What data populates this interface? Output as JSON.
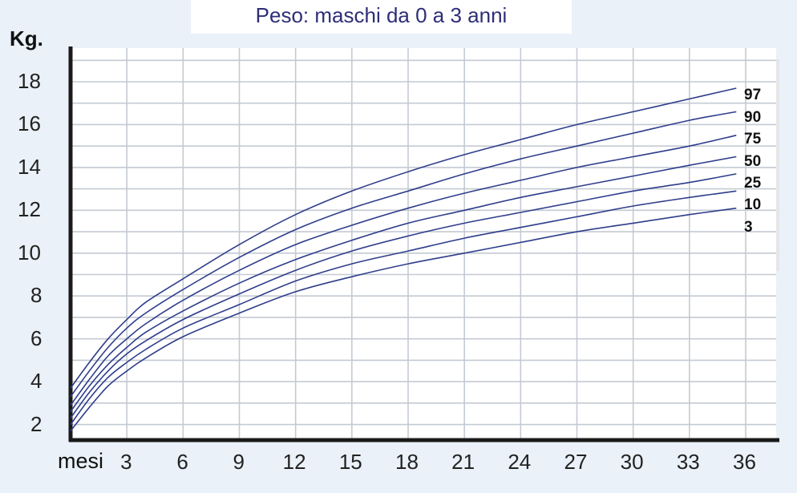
{
  "chart_data": {
    "type": "line",
    "title": "Peso: maschi da 0 a 3 anni",
    "ylabel": "Kg.",
    "xlabel": "mesi",
    "xlim": [
      0,
      36
    ],
    "ylim": [
      0,
      19
    ],
    "grid": true,
    "legend": "right",
    "x_ticks": [
      3,
      6,
      9,
      12,
      15,
      18,
      21,
      24,
      27,
      30,
      33,
      36
    ],
    "y_ticks": [
      2,
      4,
      6,
      8,
      10,
      12,
      14,
      16,
      18
    ],
    "x": [
      0,
      1,
      2,
      3,
      4,
      6,
      9,
      12,
      15,
      18,
      21,
      24,
      27,
      30,
      33,
      35.5
    ],
    "series": [
      {
        "name": "97",
        "values": [
          3.7,
          4.9,
          6.0,
          6.9,
          7.7,
          8.8,
          10.4,
          11.8,
          12.9,
          13.8,
          14.6,
          15.3,
          16.0,
          16.6,
          17.2,
          17.7
        ]
      },
      {
        "name": "90",
        "values": [
          3.3,
          4.5,
          5.6,
          6.5,
          7.2,
          8.3,
          9.8,
          11.1,
          12.1,
          12.9,
          13.7,
          14.4,
          15.0,
          15.6,
          16.2,
          16.6
        ]
      },
      {
        "name": "75",
        "values": [
          2.9,
          4.1,
          5.2,
          6.0,
          6.7,
          7.8,
          9.2,
          10.4,
          11.3,
          12.1,
          12.8,
          13.4,
          14.0,
          14.5,
          15.0,
          15.5
        ]
      },
      {
        "name": "50",
        "values": [
          2.6,
          3.8,
          4.8,
          5.6,
          6.3,
          7.3,
          8.6,
          9.7,
          10.6,
          11.4,
          12.0,
          12.6,
          13.1,
          13.6,
          14.1,
          14.5
        ]
      },
      {
        "name": "25",
        "values": [
          2.3,
          3.5,
          4.5,
          5.3,
          5.9,
          6.9,
          8.1,
          9.2,
          10.1,
          10.8,
          11.4,
          11.9,
          12.4,
          12.9,
          13.3,
          13.7
        ]
      },
      {
        "name": "10",
        "values": [
          2.0,
          3.2,
          4.2,
          4.9,
          5.5,
          6.5,
          7.6,
          8.7,
          9.5,
          10.1,
          10.7,
          11.2,
          11.7,
          12.2,
          12.6,
          12.9
        ]
      },
      {
        "name": "3",
        "values": [
          1.7,
          2.8,
          3.8,
          4.5,
          5.1,
          6.1,
          7.2,
          8.2,
          8.9,
          9.5,
          10.0,
          10.5,
          11.0,
          11.4,
          11.8,
          12.1
        ]
      }
    ],
    "colors": {
      "lines": "#2e3d8a",
      "grid": "#c4cad3",
      "axis": "#1a1a1a",
      "background": "#eaf1f8",
      "plot_background": "#ffffff"
    }
  }
}
